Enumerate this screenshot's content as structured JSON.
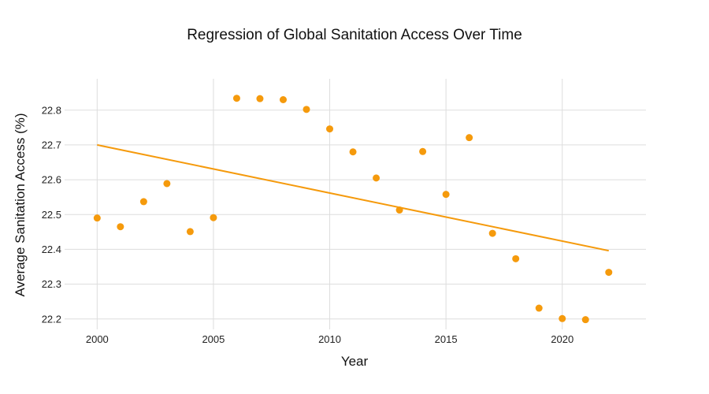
{
  "chart_data": {
    "type": "scatter",
    "title": "Regression of Global Sanitation Access Over Time",
    "xlabel": "Year",
    "ylabel": "Average Sanitation Access (%)",
    "xlim": [
      1998.6,
      2023.6
    ],
    "ylim": [
      22.17,
      22.89
    ],
    "x_ticks": [
      2000,
      2005,
      2010,
      2015,
      2020
    ],
    "y_ticks": [
      22.2,
      22.3,
      22.4,
      22.5,
      22.6,
      22.7,
      22.8
    ],
    "grid": true,
    "colors": {
      "points": "#f59a0c",
      "regression": "#f59a0c",
      "grid": "#dddddd"
    },
    "series": [
      {
        "type": "scatter",
        "x": [
          2000,
          2001,
          2002,
          2003,
          2004,
          2005,
          2006,
          2007,
          2008,
          2009,
          2010,
          2011,
          2012,
          2013,
          2014,
          2015,
          2016,
          2017,
          2018,
          2019,
          2020,
          2021,
          2022
        ],
        "y": [
          22.49,
          22.465,
          22.537,
          22.589,
          22.451,
          22.491,
          22.834,
          22.833,
          22.83,
          22.802,
          22.746,
          22.68,
          22.605,
          22.513,
          22.681,
          22.558,
          22.721,
          22.446,
          22.373,
          22.231,
          22.201,
          22.198,
          22.334
        ]
      },
      {
        "type": "line",
        "x": [
          2000,
          2022
        ],
        "y": [
          22.7,
          22.396
        ]
      }
    ]
  }
}
